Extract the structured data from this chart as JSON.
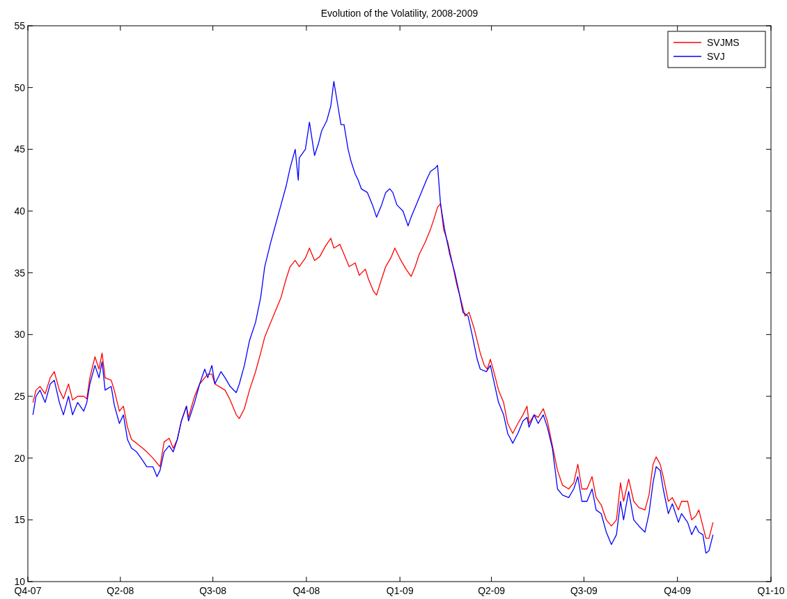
{
  "chart_data": {
    "type": "line",
    "title": "Evolution of the Volatility, 2008-2009",
    "xlim": [
      "2008-01-01",
      "2010-01-01"
    ],
    "xticks": [
      {
        "value": "2008-01-01",
        "label": "Q4-07"
      },
      {
        "value": "2008-04-01",
        "label": "Q2-08"
      },
      {
        "value": "2008-07-01",
        "label": "Q3-08"
      },
      {
        "value": "2008-10-01",
        "label": "Q4-08"
      },
      {
        "value": "2009-01-01",
        "label": "Q1-09"
      },
      {
        "value": "2009-04-01",
        "label": "Q2-09"
      },
      {
        "value": "2009-07-01",
        "label": "Q3-09"
      },
      {
        "value": "2009-10-01",
        "label": "Q4-09"
      },
      {
        "value": "2010-01-01",
        "label": "Q1-10"
      }
    ],
    "ylim": [
      10,
      55
    ],
    "yticks": [
      10,
      15,
      20,
      25,
      30,
      35,
      40,
      45,
      50,
      55
    ],
    "grid": false,
    "legend": "top right",
    "marker": "none",
    "line_style": "solid",
    "series": [
      {
        "name": "SVJMS",
        "color": "#ff0000",
        "x": [
          "2008-01-06",
          "2008-01-09",
          "2008-01-13",
          "2008-01-18",
          "2008-01-23",
          "2008-01-27",
          "2008-02-01",
          "2008-02-05",
          "2008-02-10",
          "2008-02-14",
          "2008-02-19",
          "2008-02-25",
          "2008-02-28",
          "2008-03-02",
          "2008-03-07",
          "2008-03-11",
          "2008-03-14",
          "2008-03-17",
          "2008-03-23",
          "2008-03-26",
          "2008-03-31",
          "2008-04-04",
          "2008-04-08",
          "2008-04-12",
          "2008-04-17",
          "2008-04-23",
          "2008-04-27",
          "2008-05-03",
          "2008-05-07",
          "2008-05-10",
          "2008-05-14",
          "2008-05-19",
          "2008-05-23",
          "2008-05-27",
          "2008-05-31",
          "2008-06-05",
          "2008-06-07",
          "2008-06-13",
          "2008-06-18",
          "2008-06-23",
          "2008-06-26",
          "2008-06-30",
          "2008-07-03",
          "2008-07-09",
          "2008-07-13",
          "2008-07-18",
          "2008-07-24",
          "2008-07-27",
          "2008-08-01",
          "2008-08-06",
          "2008-08-12",
          "2008-08-17",
          "2008-08-21",
          "2008-08-27",
          "2008-09-01",
          "2008-09-06",
          "2008-09-11",
          "2008-09-15",
          "2008-09-20",
          "2008-09-24",
          "2008-09-30",
          "2008-10-04",
          "2008-10-09",
          "2008-10-14",
          "2008-10-20",
          "2008-10-25",
          "2008-10-28",
          "2008-11-03",
          "2008-11-07",
          "2008-11-12",
          "2008-11-18",
          "2008-11-22",
          "2008-11-28",
          "2008-12-01",
          "2008-12-06",
          "2008-12-09",
          "2008-12-14",
          "2008-12-18",
          "2008-12-23",
          "2008-12-27",
          "2009-01-02",
          "2009-01-07",
          "2009-01-12",
          "2009-01-16",
          "2009-01-20",
          "2009-01-26",
          "2009-01-31",
          "2009-02-04",
          "2009-02-07",
          "2009-02-10",
          "2009-02-13",
          "2009-02-17",
          "2009-02-21",
          "2009-02-26",
          "2009-03-02",
          "2009-03-06",
          "2009-03-10",
          "2009-03-15",
          "2009-03-18",
          "2009-03-21",
          "2009-03-25",
          "2009-03-28",
          "2009-03-31",
          "2009-04-04",
          "2009-04-08",
          "2009-04-13",
          "2009-04-17",
          "2009-04-22",
          "2009-04-27",
          "2009-05-02",
          "2009-05-06",
          "2009-05-08",
          "2009-05-13",
          "2009-05-17",
          "2009-05-22",
          "2009-05-26",
          "2009-05-31",
          "2009-06-05",
          "2009-06-10",
          "2009-06-16",
          "2009-06-21",
          "2009-06-25",
          "2009-06-29",
          "2009-07-04",
          "2009-07-09",
          "2009-07-13",
          "2009-07-18",
          "2009-07-23",
          "2009-07-28",
          "2009-08-02",
          "2009-08-06",
          "2009-08-09",
          "2009-08-14",
          "2009-08-19",
          "2009-08-24",
          "2009-08-30",
          "2009-09-03",
          "2009-09-07",
          "2009-09-10",
          "2009-09-14",
          "2009-09-17",
          "2009-09-22",
          "2009-09-26",
          "2009-10-02",
          "2009-10-05",
          "2009-10-11",
          "2009-10-15",
          "2009-10-19",
          "2009-10-22",
          "2009-10-26",
          "2009-10-29",
          "2009-11-01",
          "2009-11-05"
        ],
        "values": [
          24.5,
          25.5,
          25.8,
          25.2,
          26.5,
          27.0,
          25.5,
          24.8,
          26,
          24.7,
          25,
          25,
          24.8,
          26.5,
          28.2,
          27.2,
          28.5,
          26.5,
          26.3,
          25.5,
          23.8,
          24.2,
          22.5,
          21.5,
          21.2,
          20.8,
          20.5,
          20,
          19.6,
          19.3,
          21.3,
          21.6,
          20.8,
          21.5,
          23,
          24.2,
          23.3,
          25,
          26,
          26.5,
          26.8,
          26.8,
          26,
          25.7,
          25.5,
          24.7,
          23.5,
          23.2,
          24,
          25.5,
          27,
          28.5,
          29.8,
          31,
          32,
          33,
          34.5,
          35.5,
          36,
          35.5,
          36.2,
          37,
          36,
          36.3,
          37.2,
          37.8,
          37,
          37.3,
          36.5,
          35.5,
          35.8,
          34.8,
          35.3,
          34.5,
          33.5,
          33.2,
          34.5,
          35.5,
          36.2,
          37,
          36,
          35.3,
          34.7,
          35.5,
          36.5,
          37.5,
          38.5,
          39.5,
          40.3,
          40.6,
          38.5,
          37.5,
          36,
          34,
          32.8,
          31.5,
          31.8,
          30.5,
          29.5,
          28.5,
          27.5,
          27.2,
          28,
          26.8,
          25.5,
          24.5,
          22.8,
          22,
          22.8,
          23.5,
          24.2,
          22.8,
          23.5,
          23.3,
          24,
          23,
          21,
          19,
          17.8,
          17.5,
          18,
          19.5,
          17.5,
          17.5,
          18.5,
          16.8,
          16.2,
          15,
          14.5,
          15,
          18,
          16.5,
          18.3,
          16.5,
          16,
          15.8,
          17,
          19.5,
          20.1,
          19.5,
          18.5,
          16.5,
          16.8,
          15.8,
          16.5,
          16.5,
          15,
          15.3,
          15.8,
          14.5,
          13.5,
          13.5,
          14.8
        ]
      },
      {
        "name": "SVJ",
        "color": "#0000ff",
        "x": [
          "2008-01-06",
          "2008-01-09",
          "2008-01-13",
          "2008-01-18",
          "2008-01-23",
          "2008-01-27",
          "2008-02-01",
          "2008-02-05",
          "2008-02-10",
          "2008-02-14",
          "2008-02-19",
          "2008-02-25",
          "2008-02-28",
          "2008-03-02",
          "2008-03-07",
          "2008-03-11",
          "2008-03-14",
          "2008-03-17",
          "2008-03-23",
          "2008-03-26",
          "2008-03-31",
          "2008-04-04",
          "2008-04-08",
          "2008-04-12",
          "2008-04-17",
          "2008-04-23",
          "2008-04-27",
          "2008-05-03",
          "2008-05-07",
          "2008-05-10",
          "2008-05-14",
          "2008-05-19",
          "2008-05-23",
          "2008-05-27",
          "2008-05-31",
          "2008-06-05",
          "2008-06-07",
          "2008-06-13",
          "2008-06-18",
          "2008-06-23",
          "2008-06-26",
          "2008-06-30",
          "2008-07-03",
          "2008-07-09",
          "2008-07-13",
          "2008-07-18",
          "2008-07-24",
          "2008-07-27",
          "2008-08-01",
          "2008-08-06",
          "2008-08-12",
          "2008-08-17",
          "2008-08-21",
          "2008-08-27",
          "2008-09-01",
          "2008-09-06",
          "2008-09-11",
          "2008-09-15",
          "2008-09-20",
          "2008-09-23",
          "2008-09-24",
          "2008-09-30",
          "2008-10-04",
          "2008-10-09",
          "2008-10-13",
          "2008-10-16",
          "2008-10-21",
          "2008-10-25",
          "2008-10-28",
          "2008-11-01",
          "2008-11-04",
          "2008-11-07",
          "2008-11-11",
          "2008-11-14",
          "2008-11-18",
          "2008-11-21",
          "2008-11-24",
          "2008-11-30",
          "2008-12-05",
          "2008-12-09",
          "2008-12-14",
          "2008-12-18",
          "2008-12-22",
          "2008-12-25",
          "2008-12-29",
          "2009-01-04",
          "2009-01-09",
          "2009-01-12",
          "2009-01-17",
          "2009-01-22",
          "2009-01-27",
          "2009-01-31",
          "2009-02-05",
          "2009-02-07",
          "2009-02-10",
          "2009-02-14",
          "2009-02-19",
          "2009-02-24",
          "2009-02-28",
          "2009-03-04",
          "2009-03-09",
          "2009-03-13",
          "2009-03-18",
          "2009-03-21",
          "2009-03-27",
          "2009-03-31",
          "2009-04-04",
          "2009-04-08",
          "2009-04-13",
          "2009-04-17",
          "2009-04-22",
          "2009-04-27",
          "2009-05-02",
          "2009-05-06",
          "2009-05-08",
          "2009-05-13",
          "2009-05-17",
          "2009-05-22",
          "2009-05-26",
          "2009-05-31",
          "2009-06-05",
          "2009-06-10",
          "2009-06-16",
          "2009-06-21",
          "2009-06-25",
          "2009-06-29",
          "2009-07-04",
          "2009-07-09",
          "2009-07-13",
          "2009-07-18",
          "2009-07-23",
          "2009-07-28",
          "2009-08-02",
          "2009-08-06",
          "2009-08-09",
          "2009-08-14",
          "2009-08-19",
          "2009-08-24",
          "2009-08-30",
          "2009-09-03",
          "2009-09-07",
          "2009-09-10",
          "2009-09-14",
          "2009-09-17",
          "2009-09-22",
          "2009-09-26",
          "2009-10-02",
          "2009-10-05",
          "2009-10-11",
          "2009-10-15",
          "2009-10-19",
          "2009-10-22",
          "2009-10-26",
          "2009-10-29",
          "2009-11-01",
          "2009-11-05"
        ],
        "values": [
          23.5,
          25,
          25.5,
          24.5,
          26,
          26.3,
          24.5,
          23.5,
          25,
          23.5,
          24.5,
          23.8,
          24.5,
          26,
          27.5,
          26.5,
          27.8,
          25.5,
          25.8,
          24.3,
          22.8,
          23.5,
          21.5,
          20.8,
          20.5,
          19.8,
          19.3,
          19.3,
          18.5,
          19,
          20.5,
          21,
          20.5,
          21.5,
          23,
          24.2,
          23,
          24.5,
          26,
          27.2,
          26.5,
          27.5,
          26,
          27,
          26.5,
          25.8,
          25.3,
          26,
          27.5,
          29.5,
          31,
          33,
          35.5,
          37.5,
          39,
          40.5,
          42,
          43.5,
          45,
          42.5,
          44.3,
          45,
          47.2,
          44.5,
          45.5,
          46.5,
          47.3,
          48.5,
          50.5,
          48.5,
          47,
          47,
          45,
          44,
          43,
          42.5,
          41.8,
          41.5,
          40.5,
          39.5,
          40.5,
          41.5,
          41.8,
          41.5,
          40.5,
          40,
          38.8,
          39.5,
          40.5,
          41.5,
          42.5,
          43.2,
          43.5,
          43.7,
          40.5,
          38.5,
          36.5,
          35,
          33.5,
          31.8,
          31.5,
          30,
          28,
          27.2,
          27,
          27.5,
          26,
          24.5,
          23.5,
          22,
          21.2,
          22,
          23,
          23.3,
          22.5,
          23.5,
          22.8,
          23.5,
          22.5,
          20.8,
          17.5,
          17,
          16.8,
          17.5,
          18.5,
          16.5,
          16.5,
          17.5,
          15.8,
          15.5,
          14,
          13,
          13.8,
          16.5,
          15,
          17.3,
          15,
          14.5,
          14,
          15.5,
          18,
          19.3,
          19,
          17.5,
          15.5,
          16.3,
          14.8,
          15.5,
          14.8,
          13.8,
          14.5,
          14,
          13.8,
          12.3,
          12.5,
          13.8
        ]
      }
    ]
  }
}
